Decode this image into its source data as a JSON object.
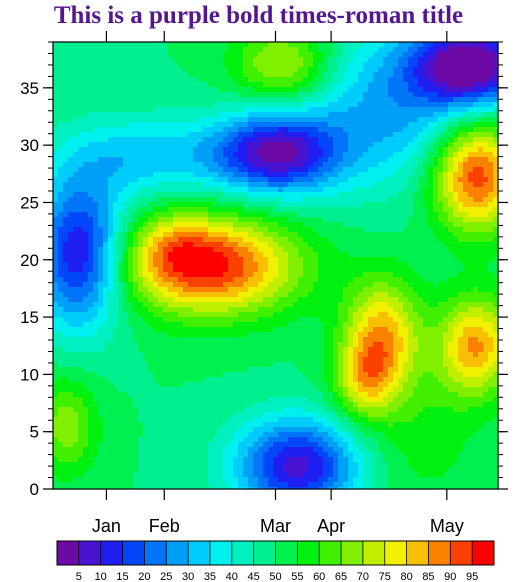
{
  "title": "This is a purple bold times-roman title",
  "colors": {
    "title": "#55178f",
    "frame": "#000000",
    "background": "#ffffff"
  },
  "chart_data": {
    "type": "heatmap",
    "title": "This is a purple bold times-roman title",
    "xlabel": "",
    "ylabel": "",
    "xlim": [
      0,
      1
    ],
    "ylim": [
      0,
      39
    ],
    "x_ticks": [
      {
        "label": "Jan",
        "pos": 0.12
      },
      {
        "label": "Feb",
        "pos": 0.25
      },
      {
        "label": "Mar",
        "pos": 0.5
      },
      {
        "label": "Apr",
        "pos": 0.625
      },
      {
        "label": "May",
        "pos": 0.885
      }
    ],
    "y_ticks": [
      0,
      5,
      10,
      15,
      20,
      25,
      30,
      35
    ],
    "y_minor_step": 1,
    "grid": false,
    "colorbar": {
      "levels": [
        5,
        10,
        15,
        20,
        25,
        30,
        35,
        40,
        45,
        50,
        55,
        60,
        65,
        70,
        75,
        80,
        85,
        90,
        95
      ],
      "colors": [
        "#6d0aa6",
        "#4814d2",
        "#1e1ff0",
        "#0048f7",
        "#0075f8",
        "#00a0f9",
        "#00ccfb",
        "#00f0f0",
        "#00f0c0",
        "#00f090",
        "#00f050",
        "#00f010",
        "#40f000",
        "#80f000",
        "#c0f000",
        "#f0f000",
        "#f8c000",
        "#fa8000",
        "#fc4000",
        "#ff0000"
      ]
    },
    "field": {
      "base": 50,
      "features": [
        {
          "x": 0.06,
          "y": 20.5,
          "sx": 0.07,
          "sy": 4.5,
          "a": -43
        },
        {
          "x": 0.2,
          "y": 29,
          "sx": 0.13,
          "sy": 2.5,
          "a": -18
        },
        {
          "x": 0.5,
          "y": 29.3,
          "sx": 0.1,
          "sy": 2.5,
          "a": -44
        },
        {
          "x": 0.77,
          "y": 33.5,
          "sx": 0.16,
          "sy": 5,
          "a": -22
        },
        {
          "x": 0.94,
          "y": 37,
          "sx": 0.09,
          "sy": 2.5,
          "a": -48
        },
        {
          "x": 0.55,
          "y": 2,
          "sx": 0.1,
          "sy": 3,
          "a": -42
        },
        {
          "x": 0.35,
          "y": 19.5,
          "sx": 0.14,
          "sy": 3,
          "a": 47
        },
        {
          "x": 0.27,
          "y": 21.5,
          "sx": 0.06,
          "sy": 2,
          "a": 10
        },
        {
          "x": 0.95,
          "y": 27.5,
          "sx": 0.07,
          "sy": 3.5,
          "a": 47
        },
        {
          "x": 0.74,
          "y": 13.5,
          "sx": 0.06,
          "sy": 3.5,
          "a": 32
        },
        {
          "x": 0.7,
          "y": 9.5,
          "sx": 0.05,
          "sy": 2.5,
          "a": 22
        },
        {
          "x": 0.95,
          "y": 12.5,
          "sx": 0.06,
          "sy": 3,
          "a": 35
        },
        {
          "x": 0.52,
          "y": 37,
          "sx": 0.08,
          "sy": 2.5,
          "a": 25
        },
        {
          "x": 0.03,
          "y": 5.5,
          "sx": 0.05,
          "sy": 3,
          "a": 18
        },
        {
          "x": 0.82,
          "y": 5,
          "sx": 0.1,
          "sy": 5,
          "a": 8
        }
      ]
    }
  }
}
